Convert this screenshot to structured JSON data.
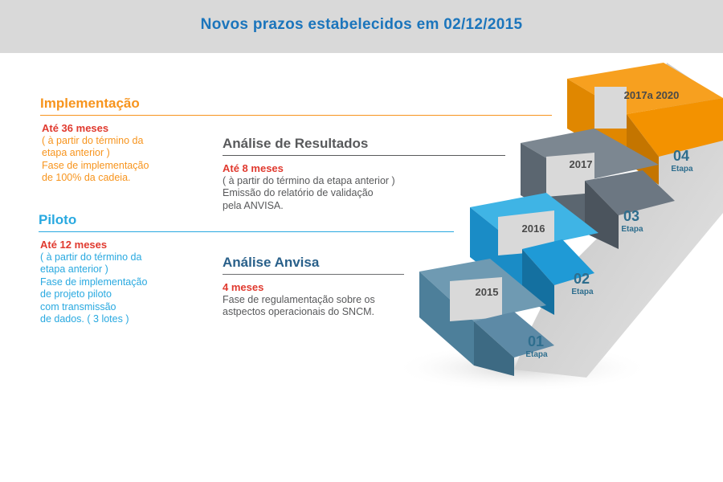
{
  "header": {
    "title": "Novos prazos estabelecidos em 02/12/2015"
  },
  "blocks": {
    "implementacao": {
      "title": "Implementação",
      "lead": "Até 36 meses",
      "lines": [
        "( à partir do término da",
        "etapa anterior )",
        "Fase de implementação",
        "de 100% da cadeia."
      ]
    },
    "piloto": {
      "title": "Piloto",
      "lead": "Até 12 meses",
      "lines": [
        "( à partir do término da",
        "etapa anterior )",
        "Fase de implementação",
        "de projeto piloto",
        "com transmissão",
        "de dados. ( 3 lotes )"
      ]
    },
    "resultados": {
      "title": "Análise de Resultados",
      "lead": "Até 8 meses",
      "lines": [
        "( à partir do término da etapa anterior )",
        "Emissão do relatório de validação",
        "pela ANVISA."
      ]
    },
    "anvisa": {
      "title": "Análise Anvisa",
      "lead": "4 meses",
      "lines": [
        "Fase de regulamentação sobre os",
        "astpectos operacionais do SNCM."
      ]
    }
  },
  "steps": [
    {
      "year": "2015",
      "num": "01",
      "label": "Etapa",
      "color": "#4d7f9a"
    },
    {
      "year": "2016",
      "num": "02",
      "label": "Etapa",
      "color": "#1f9ad6"
    },
    {
      "year": "2017",
      "num": "03",
      "label": "Etapa",
      "color": "#5b6670"
    },
    {
      "year": "2017a 2020",
      "num": "04",
      "label": "Etapa",
      "color": "#f39200"
    }
  ]
}
